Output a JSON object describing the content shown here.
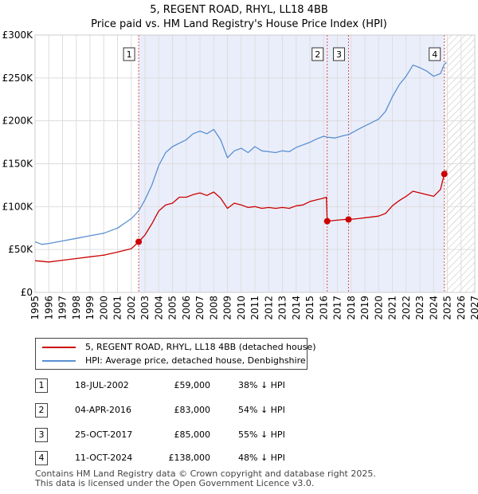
{
  "header": {
    "title_line1": "5, REGENT ROAD, RHYL, LL18 4BB",
    "title_line2": "Price paid vs. HM Land Registry's House Price Index (HPI)"
  },
  "chart_data": {
    "type": "line",
    "xlim": [
      1995,
      2027
    ],
    "ylim": [
      0,
      300000
    ],
    "x_ticks": [
      "1995",
      "1996",
      "1997",
      "1998",
      "1999",
      "2000",
      "2001",
      "2002",
      "2003",
      "2004",
      "2005",
      "2006",
      "2007",
      "2008",
      "2009",
      "2010",
      "2011",
      "2012",
      "2013",
      "2014",
      "2015",
      "2016",
      "2017",
      "2018",
      "2019",
      "2020",
      "2021",
      "2022",
      "2023",
      "2024",
      "2025",
      "2026",
      "2027"
    ],
    "y_ticks": [
      {
        "value": 0,
        "label": "£0"
      },
      {
        "value": 50000,
        "label": "£50K"
      },
      {
        "value": 100000,
        "label": "£100K"
      },
      {
        "value": 150000,
        "label": "£150K"
      },
      {
        "value": 200000,
        "label": "£200K"
      },
      {
        "value": 250000,
        "label": "£250K"
      },
      {
        "value": 300000,
        "label": "£300K"
      }
    ],
    "shaded_from": 2002.54,
    "shaded_to": 2024.78,
    "hatched_from": 2024.78,
    "series": [
      {
        "name": "5, REGENT ROAD, RHYL, LL18 4BB (detached house)",
        "color": "#cc0000",
        "points": [
          [
            1995.0,
            37000
          ],
          [
            1996.0,
            35500
          ],
          [
            1997.0,
            37500
          ],
          [
            1998.0,
            39500
          ],
          [
            1999.0,
            41500
          ],
          [
            2000.0,
            43500
          ],
          [
            2001.0,
            47000
          ],
          [
            2002.0,
            51000
          ],
          [
            2002.54,
            59000
          ],
          [
            2003.0,
            67000
          ],
          [
            2003.5,
            80000
          ],
          [
            2004.0,
            95000
          ],
          [
            2004.5,
            102000
          ],
          [
            2005.0,
            104000
          ],
          [
            2005.5,
            111000
          ],
          [
            2006.0,
            111000
          ],
          [
            2006.5,
            114000
          ],
          [
            2007.0,
            116000
          ],
          [
            2007.5,
            113000
          ],
          [
            2008.0,
            117000
          ],
          [
            2008.5,
            110000
          ],
          [
            2009.0,
            98000
          ],
          [
            2009.5,
            104000
          ],
          [
            2010.0,
            102000
          ],
          [
            2010.5,
            99000
          ],
          [
            2011.0,
            100000
          ],
          [
            2011.5,
            98000
          ],
          [
            2012.0,
            99000
          ],
          [
            2012.5,
            98000
          ],
          [
            2013.0,
            99000
          ],
          [
            2013.5,
            98000
          ],
          [
            2014.0,
            101000
          ],
          [
            2014.5,
            102000
          ],
          [
            2015.0,
            106000
          ],
          [
            2015.5,
            108000
          ],
          [
            2016.0,
            110000
          ],
          [
            2016.2,
            111000
          ],
          [
            2016.26,
            83000
          ],
          [
            2016.8,
            84000
          ],
          [
            2017.5,
            85000
          ],
          [
            2017.81,
            85000
          ],
          [
            2018.5,
            86000
          ],
          [
            2019.0,
            87000
          ],
          [
            2019.5,
            88000
          ],
          [
            2020.0,
            89000
          ],
          [
            2020.5,
            92000
          ],
          [
            2021.0,
            101000
          ],
          [
            2021.5,
            107000
          ],
          [
            2022.0,
            112000
          ],
          [
            2022.5,
            118000
          ],
          [
            2023.0,
            116000
          ],
          [
            2023.5,
            114000
          ],
          [
            2024.0,
            112000
          ],
          [
            2024.5,
            120000
          ],
          [
            2024.78,
            138000
          ],
          [
            2024.95,
            142000
          ]
        ]
      },
      {
        "name": "HPI: Average price, detached house, Denbighshire",
        "color": "#5b8fd0",
        "points": [
          [
            1995.0,
            59000
          ],
          [
            1995.5,
            56000
          ],
          [
            1996.0,
            57000
          ],
          [
            1997.0,
            60000
          ],
          [
            1998.0,
            63000
          ],
          [
            1999.0,
            66000
          ],
          [
            2000.0,
            69000
          ],
          [
            2001.0,
            75000
          ],
          [
            2002.0,
            86000
          ],
          [
            2002.54,
            95000
          ],
          [
            2003.0,
            108000
          ],
          [
            2003.5,
            125000
          ],
          [
            2004.0,
            148000
          ],
          [
            2004.5,
            163000
          ],
          [
            2005.0,
            170000
          ],
          [
            2005.5,
            174000
          ],
          [
            2006.0,
            178000
          ],
          [
            2006.5,
            185000
          ],
          [
            2007.0,
            188000
          ],
          [
            2007.5,
            185000
          ],
          [
            2008.0,
            190000
          ],
          [
            2008.5,
            178000
          ],
          [
            2009.0,
            157000
          ],
          [
            2009.5,
            165000
          ],
          [
            2010.0,
            168000
          ],
          [
            2010.5,
            163000
          ],
          [
            2011.0,
            170000
          ],
          [
            2011.5,
            165000
          ],
          [
            2012.0,
            164000
          ],
          [
            2012.5,
            163000
          ],
          [
            2013.0,
            165000
          ],
          [
            2013.5,
            164000
          ],
          [
            2014.0,
            169000
          ],
          [
            2014.5,
            172000
          ],
          [
            2015.0,
            175000
          ],
          [
            2015.5,
            179000
          ],
          [
            2016.0,
            182000
          ],
          [
            2016.26,
            181000
          ],
          [
            2016.8,
            180000
          ],
          [
            2017.5,
            183000
          ],
          [
            2017.81,
            184000
          ],
          [
            2018.5,
            190000
          ],
          [
            2019.0,
            194000
          ],
          [
            2019.5,
            198000
          ],
          [
            2020.0,
            202000
          ],
          [
            2020.5,
            211000
          ],
          [
            2021.0,
            228000
          ],
          [
            2021.5,
            242000
          ],
          [
            2022.0,
            252000
          ],
          [
            2022.5,
            265000
          ],
          [
            2023.0,
            262000
          ],
          [
            2023.5,
            258000
          ],
          [
            2024.0,
            252000
          ],
          [
            2024.5,
            255000
          ],
          [
            2024.78,
            266000
          ],
          [
            2024.95,
            268000
          ]
        ]
      }
    ],
    "sales": [
      {
        "label": "1",
        "x": 2002.54,
        "price": 59000
      },
      {
        "label": "2",
        "x": 2016.26,
        "price": 83000
      },
      {
        "label": "3",
        "x": 2017.81,
        "price": 85000
      },
      {
        "label": "4",
        "x": 2024.78,
        "price": 138000
      }
    ]
  },
  "legend": {
    "property_label": "5, REGENT ROAD, RHYL, LL18 4BB (detached house)",
    "hpi_label": "HPI: Average price, detached house, Denbighshire",
    "property_color": "#cc0000",
    "hpi_color": "#5b8fd0"
  },
  "table": [
    {
      "num": "1",
      "date": "18-JUL-2002",
      "price": "£59,000",
      "hpi": "38% ↓ HPI"
    },
    {
      "num": "2",
      "date": "04-APR-2016",
      "price": "£83,000",
      "hpi": "54% ↓ HPI"
    },
    {
      "num": "3",
      "date": "25-OCT-2017",
      "price": "£85,000",
      "hpi": "55% ↓ HPI"
    },
    {
      "num": "4",
      "date": "11-OCT-2024",
      "price": "£138,000",
      "hpi": "48% ↓ HPI"
    }
  ],
  "footer": {
    "line1": "Contains HM Land Registry data © Crown copyright and database right 2025.",
    "line2": "This data is licensed under the Open Government Licence v3.0."
  }
}
